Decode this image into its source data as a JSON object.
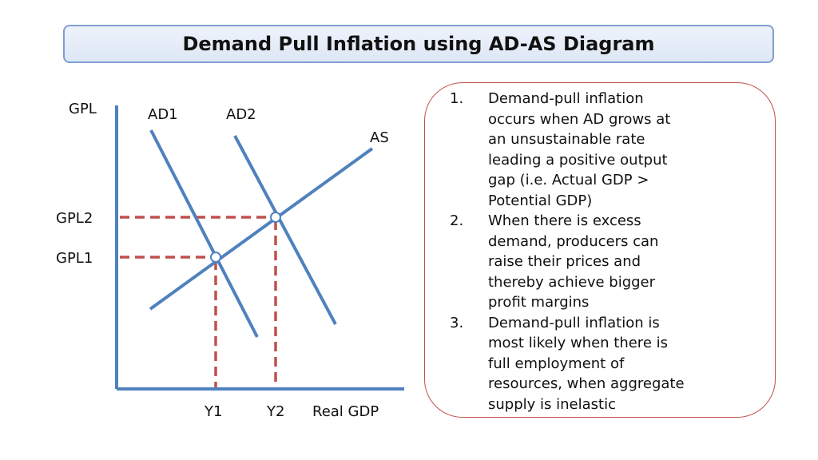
{
  "title": "Demand Pull Inflation using AD-AS Diagram",
  "diagram": {
    "y_axis_label": "GPL",
    "x_axis_label": "Real GDP",
    "curves": {
      "ad1": "AD1",
      "ad2": "AD2",
      "as": "AS"
    },
    "price_levels": {
      "gpl1": "GPL1",
      "gpl2": "GPL2"
    },
    "outputs": {
      "y1": "Y1",
      "y2": "Y2"
    },
    "colors": {
      "curves": "#4f81bd",
      "guides": "#c0504d"
    }
  },
  "notes": [
    {
      "number": "1.",
      "lines": [
        "Demand-pull inflation",
        "occurs when AD grows at",
        "an unsustainable rate",
        "leading a positive output",
        "gap (i.e. Actual GDP >",
        "Potential GDP)"
      ]
    },
    {
      "number": "2.",
      "lines": [
        "When there is excess",
        "demand, producers can",
        "raise their prices and",
        "thereby achieve bigger",
        "profit margins"
      ]
    },
    {
      "number": "3.",
      "lines": [
        "Demand-pull inflation is",
        "most likely when there is",
        "full employment of",
        "resources, when aggregate",
        "supply is inelastic"
      ]
    }
  ]
}
